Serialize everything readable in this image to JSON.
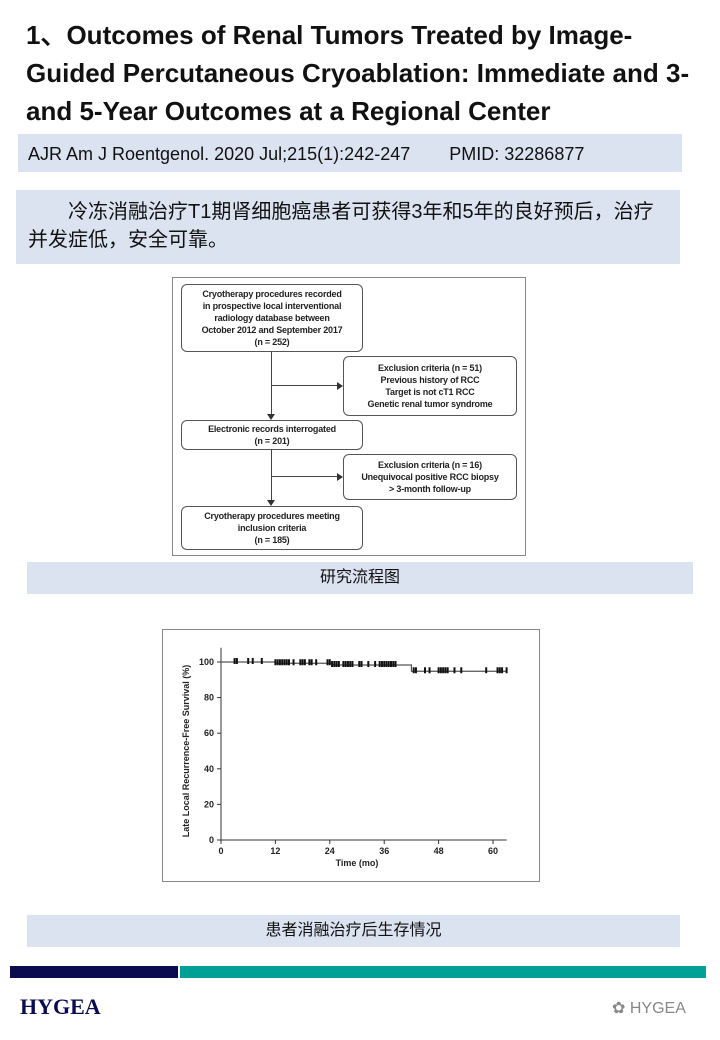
{
  "title": "1、Outcomes of Renal Tumors Treated by Image-Guided Percutaneous Cryoablation: Immediate and 3- and 5-Year Outcomes at a Regional Center",
  "citation": {
    "journal": "AJR Am J Roentgenol. 2020 Jul;215(1):242-247",
    "pmid": "PMID: 32286877"
  },
  "summary": "冷冻消融治疗T1期肾细胞癌患者可获得3年和5年的良好预后，治疗并发症低，安全可靠。",
  "flowchart": {
    "box1": [
      "Cryotherapy procedures recorded",
      "in prospective local interventional",
      "radiology database between",
      "October 2012 and September 2017",
      "(n = 252)"
    ],
    "excl1": [
      "Exclusion criteria (n = 51)",
      "Previous history of RCC",
      "Target is not cT1 RCC",
      "Genetic renal tumor syndrome"
    ],
    "box2": [
      "Electronic records interrogated",
      "(n = 201)"
    ],
    "excl2": [
      "Exclusion criteria (n = 16)",
      "Unequivocal positive RCC biopsy",
      "> 3-month follow-up"
    ],
    "box3": [
      "Cryotherapy procedures meeting",
      "inclusion criteria",
      "(n = 185)"
    ],
    "caption": "研究流程图"
  },
  "chart_data": {
    "type": "line",
    "xlabel": "Time (mo)",
    "ylabel": "Late Local Recurrence-Free Survival (%)",
    "xlim": [
      0,
      63
    ],
    "ylim": [
      0,
      108
    ],
    "xticks": [
      0,
      12,
      24,
      36,
      48,
      60
    ],
    "yticks": [
      0,
      20,
      40,
      60,
      80,
      100
    ],
    "grid": false,
    "steps": [
      {
        "x": 0,
        "y": 100
      },
      {
        "x": 12,
        "y": 99.3
      },
      {
        "x": 24.5,
        "y": 98.3
      },
      {
        "x": 42,
        "y": 94.8
      },
      {
        "x": 63,
        "y": 94.8
      }
    ],
    "censored": [
      3,
      3.5,
      6,
      7,
      9,
      12,
      12.5,
      13,
      13.5,
      14,
      14.5,
      15,
      16,
      17.5,
      18,
      18.5,
      19.5,
      20,
      21,
      23.5,
      24,
      24.5,
      25,
      25.5,
      26,
      27,
      27.5,
      28,
      28.5,
      29,
      30.5,
      31,
      32.5,
      34,
      35,
      35.5,
      36,
      36.5,
      37,
      37.5,
      38,
      38.5,
      42.5,
      43,
      45,
      46,
      48,
      48.5,
      49,
      49.5,
      50,
      51.5,
      53,
      58.5,
      61,
      61.5,
      62,
      63
    ],
    "caption": "患者消融治疗后生存情况"
  },
  "footer": {
    "logo": "HYGEA",
    "watermark": "HYGEA"
  }
}
